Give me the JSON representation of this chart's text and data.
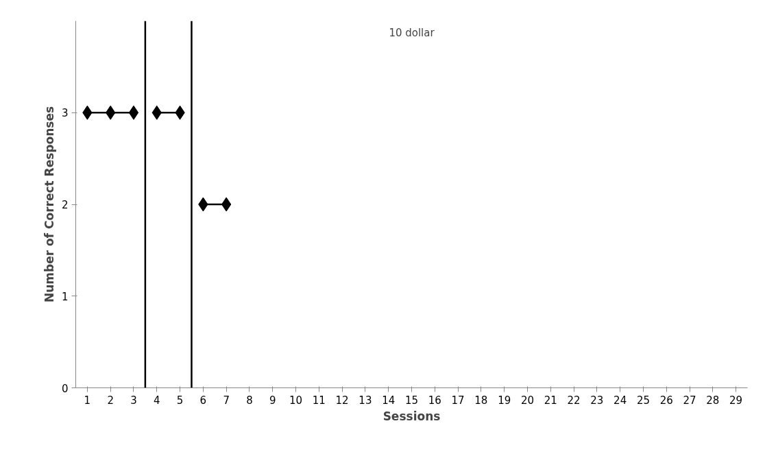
{
  "chart_data": {
    "type": "line",
    "xlabel": "Sessions",
    "ylabel": "Number of Correct Responses",
    "annotations": [
      "10 dollar"
    ],
    "xlim": [
      0.5,
      29.5
    ],
    "xticks": [
      1,
      2,
      3,
      4,
      5,
      6,
      7,
      8,
      9,
      10,
      11,
      12,
      13,
      14,
      15,
      16,
      17,
      18,
      19,
      20,
      21,
      22,
      23,
      24,
      25,
      26,
      27,
      28,
      29
    ],
    "ylim": [
      0,
      4
    ],
    "yticks": [
      0,
      1,
      2,
      3
    ],
    "series": [
      {
        "color": "#000000",
        "x": [
          1,
          2,
          3
        ],
        "values": [
          3,
          3,
          3
        ]
      },
      {
        "color": "#000000",
        "x": [
          4,
          5
        ],
        "values": [
          3,
          3
        ]
      },
      {
        "color": "#000000",
        "x": [
          6,
          7
        ],
        "values": [
          2,
          2
        ]
      }
    ],
    "ref_lines": [
      {
        "axis": "x",
        "value": 3.5,
        "color": "#000000"
      },
      {
        "axis": "x",
        "value": 5.5,
        "color": "#000000"
      }
    ],
    "marker": "diamond",
    "grid": false
  }
}
